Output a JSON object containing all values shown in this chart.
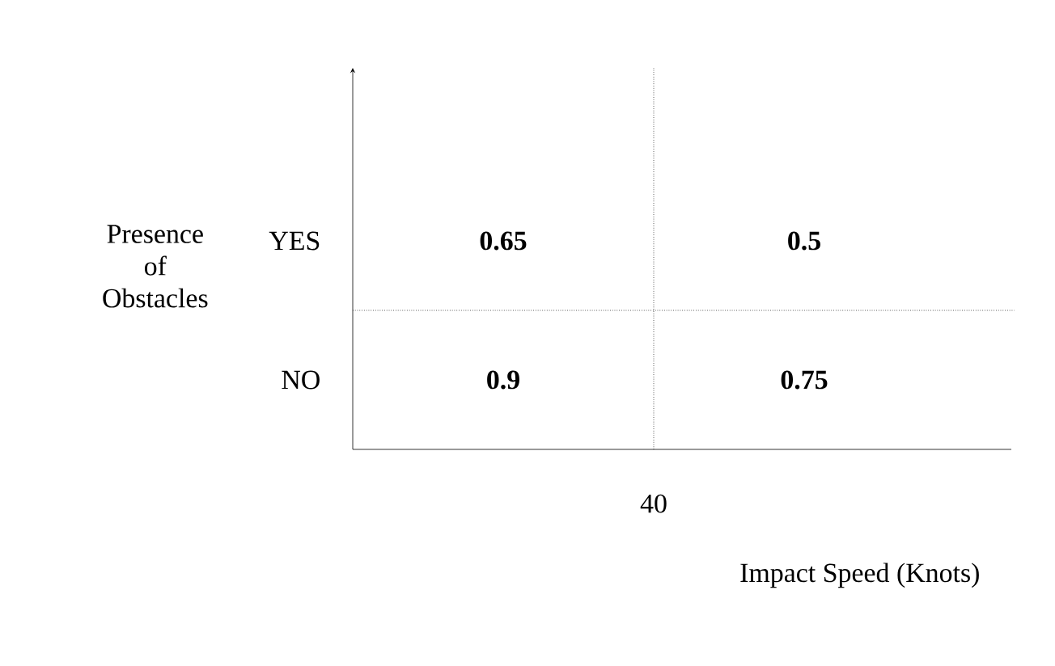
{
  "chart_data": {
    "type": "heatmap",
    "xlabel": "Impact Speed (Knots)",
    "ylabel": "Presence of Obstacles",
    "categories": [
      null,
      null
    ],
    "y_categories": [
      "YES",
      "NO"
    ],
    "cells": [
      [
        0.65,
        0.5
      ],
      [
        0.9,
        0.75
      ]
    ],
    "data_labels": true,
    "grid": true,
    "annotations": [
      "40"
    ]
  }
}
